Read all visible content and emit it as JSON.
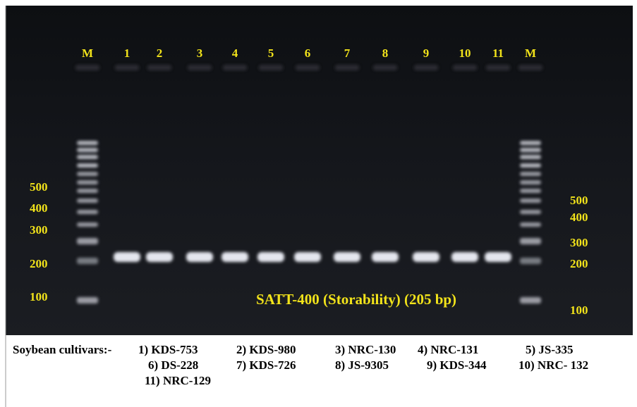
{
  "lanes": [
    "M",
    "1",
    "2",
    "3",
    "4",
    "5",
    "6",
    "7",
    "8",
    "9",
    "10",
    "11",
    "M"
  ],
  "ladder_left": [
    "500",
    "400",
    "300",
    "200",
    "100"
  ],
  "ladder_right": [
    "500",
    "400",
    "300",
    "200",
    "100"
  ],
  "annotation": "SATT-400 (Storability) (205 bp)",
  "caption": {
    "label": "Soybean cultivars:-",
    "rows": [
      [
        "1) KDS-753",
        "2) KDS-980",
        "3) NRC-130",
        "4) NRC-131",
        "5) JS-335"
      ],
      [
        "6) DS-228",
        "7) KDS-726",
        "8) JS-9305",
        "9) KDS-344",
        "10) NRC- 132"
      ],
      [
        "11) NRC-129"
      ]
    ]
  }
}
